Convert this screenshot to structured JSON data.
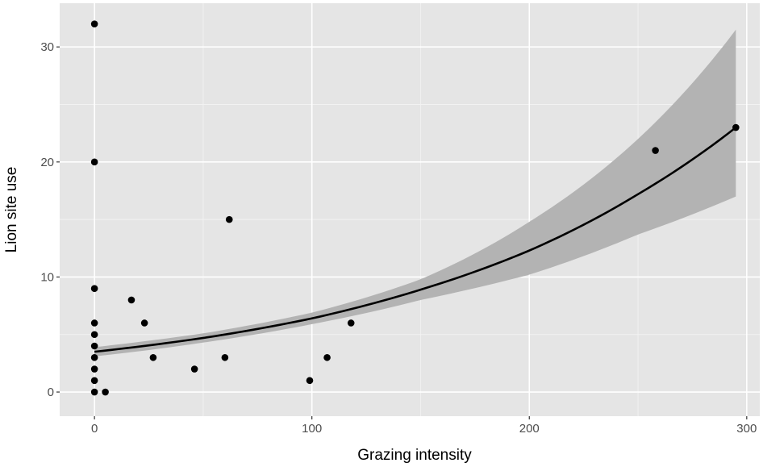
{
  "chart_data": {
    "type": "scatter",
    "xlabel": "Grazing intensity",
    "ylabel": "Lion site use",
    "xlim": [
      -16,
      306
    ],
    "ylim": [
      -2.1,
      33.8
    ],
    "x_ticks": [
      0,
      100,
      200,
      300
    ],
    "y_ticks": [
      0,
      10,
      20,
      30
    ],
    "grid": true,
    "colors": {
      "panel": "#e5e5e5",
      "grid_major": "#ffffff",
      "grid_minor": "#f2f2f2",
      "band": "#b3b3b3",
      "line": "#000000",
      "points": "#000000"
    },
    "points": [
      {
        "x": 0,
        "y": 32
      },
      {
        "x": 0,
        "y": 20
      },
      {
        "x": 0,
        "y": 9
      },
      {
        "x": 0,
        "y": 6
      },
      {
        "x": 0,
        "y": 5
      },
      {
        "x": 0,
        "y": 4
      },
      {
        "x": 0,
        "y": 3
      },
      {
        "x": 0,
        "y": 2
      },
      {
        "x": 0,
        "y": 1
      },
      {
        "x": 0,
        "y": 0
      },
      {
        "x": 5,
        "y": 0
      },
      {
        "x": 17,
        "y": 8
      },
      {
        "x": 23,
        "y": 6
      },
      {
        "x": 27,
        "y": 3
      },
      {
        "x": 46,
        "y": 2
      },
      {
        "x": 60,
        "y": 3
      },
      {
        "x": 62,
        "y": 15
      },
      {
        "x": 99,
        "y": 1
      },
      {
        "x": 107,
        "y": 3
      },
      {
        "x": 118,
        "y": 6
      },
      {
        "x": 258,
        "y": 21
      },
      {
        "x": 295,
        "y": 23
      }
    ],
    "fit": {
      "type": "exponential",
      "x": [
        0,
        50,
        100,
        150,
        200,
        250,
        295
      ],
      "y": [
        3.5,
        4.7,
        6.4,
        8.9,
        12.3,
        17.2,
        23.0
      ],
      "lower": [
        3.1,
        4.3,
        5.9,
        8.0,
        10.2,
        13.7,
        17.0
      ],
      "upper": [
        3.9,
        5.1,
        6.9,
        9.8,
        14.8,
        22.0,
        31.5
      ]
    }
  }
}
